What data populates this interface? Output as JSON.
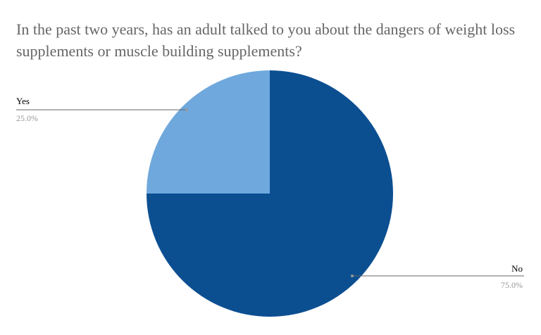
{
  "chart_data": {
    "type": "pie",
    "title": "In the past two years, has an adult talked to you about the dangers of weight loss supplements or muscle building supplements?",
    "slices": [
      {
        "label": "No",
        "value": 75.0,
        "percent_label": "75.0%",
        "color": "#0b4f91"
      },
      {
        "label": "Yes",
        "value": 25.0,
        "percent_label": "25.0%",
        "color": "#6fa8dc"
      }
    ],
    "start_angle": "12 o'clock",
    "direction": "clockwise",
    "legend": "none (slice labels with leader lines)"
  }
}
